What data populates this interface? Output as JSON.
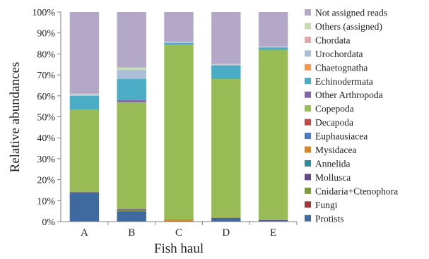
{
  "chart_data": {
    "type": "bar",
    "stacked": true,
    "xlabel": "Fish haul",
    "ylabel": "Relative abundances",
    "ylim": [
      0,
      100
    ],
    "yticks": [
      "0%",
      "10%",
      "20%",
      "30%",
      "40%",
      "50%",
      "60%",
      "70%",
      "80%",
      "90%",
      "100%"
    ],
    "categories": [
      "A",
      "B",
      "C",
      "D",
      "E"
    ],
    "legend_position": "right",
    "series": [
      {
        "name": "Protists",
        "color": "#3f6aa0",
        "values": [
          13.5,
          5,
          0.3,
          1.5,
          0.5
        ]
      },
      {
        "name": "Fungi",
        "color": "#a33838",
        "values": [
          0,
          0,
          0,
          0,
          0
        ]
      },
      {
        "name": "Cnidaria+Ctenophora",
        "color": "#7f9a3c",
        "values": [
          0,
          0.5,
          0,
          0,
          0
        ]
      },
      {
        "name": "Mollusca",
        "color": "#64458a",
        "values": [
          0.5,
          0.5,
          0,
          0.3,
          0.2
        ]
      },
      {
        "name": "Annelida",
        "color": "#2b8ca0",
        "values": [
          0,
          0,
          0,
          0,
          0
        ]
      },
      {
        "name": "Mysidacea",
        "color": "#d9862a",
        "values": [
          0,
          0,
          0.7,
          0,
          0
        ]
      },
      {
        "name": "Euphausiacea",
        "color": "#4a7bc0",
        "values": [
          0,
          0,
          0,
          0,
          0
        ]
      },
      {
        "name": "Decapoda",
        "color": "#c54848",
        "values": [
          0,
          0,
          0,
          0,
          0
        ]
      },
      {
        "name": "Copepoda",
        "color": "#99bb55",
        "values": [
          39.5,
          51,
          83.5,
          66.2,
          81.3
        ]
      },
      {
        "name": "Other Arthropoda",
        "color": "#8264a8",
        "values": [
          0,
          1,
          0,
          0,
          0
        ]
      },
      {
        "name": "Echinodermata",
        "color": "#4bacc6",
        "values": [
          6.5,
          10,
          0.8,
          6.5,
          1
        ]
      },
      {
        "name": "Chaetognatha",
        "color": "#f79646",
        "values": [
          0,
          0,
          0,
          0,
          0
        ]
      },
      {
        "name": "Urochordata",
        "color": "#aabed8",
        "values": [
          0.5,
          4.5,
          0.3,
          0.5,
          0.5
        ]
      },
      {
        "name": "Chordata",
        "color": "#e0a8a8",
        "values": [
          0,
          0,
          0,
          0,
          0
        ]
      },
      {
        "name": "Others (assigned)",
        "color": "#c9deb0",
        "values": [
          0.5,
          1,
          0.2,
          0.2,
          0.2
        ]
      },
      {
        "name": "Not assigned reads",
        "color": "#b4a8c9",
        "values": [
          39,
          26.5,
          14.2,
          24.8,
          16.3
        ]
      }
    ]
  }
}
